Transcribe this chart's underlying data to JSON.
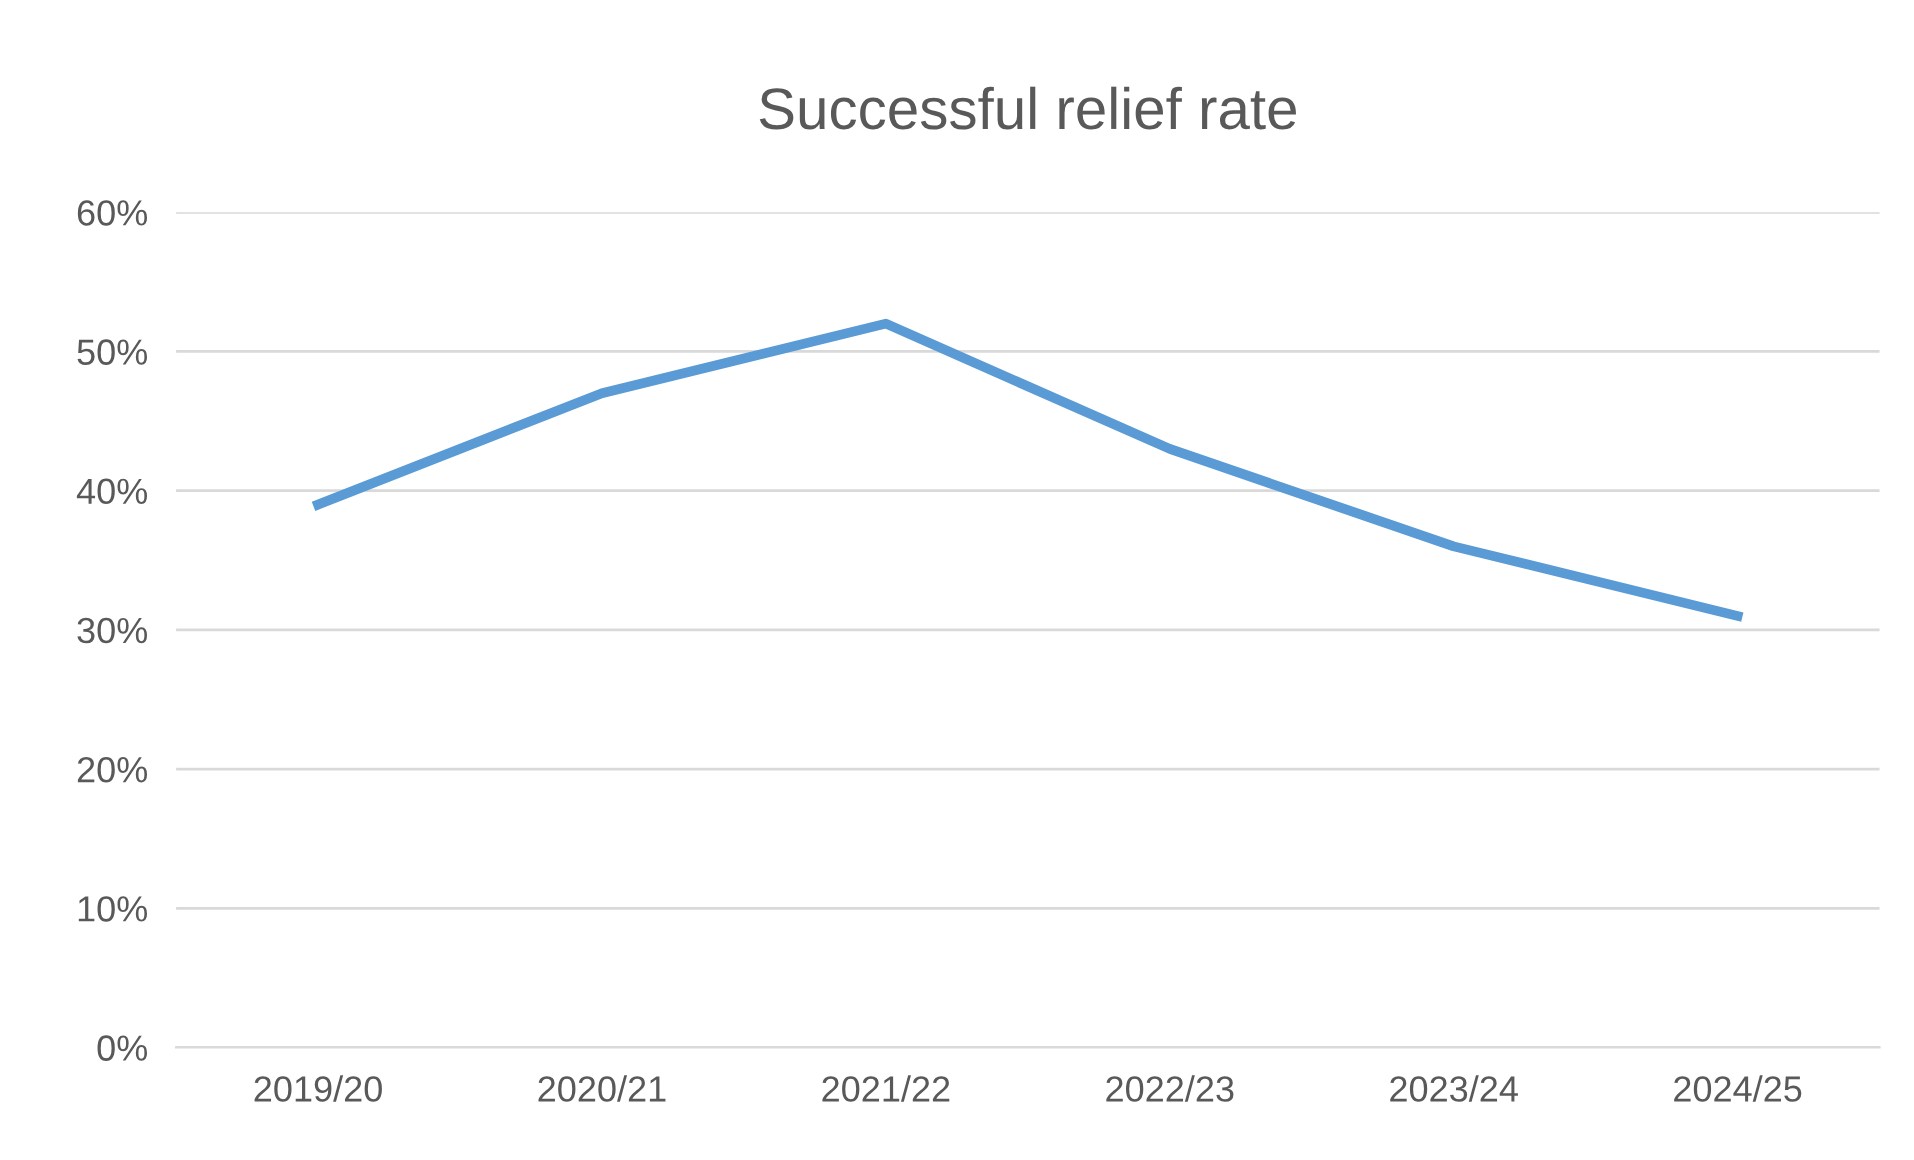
{
  "chart_data": {
    "type": "line",
    "title": "Successful relief rate",
    "categories": [
      "2019/20",
      "2020/21",
      "2021/22",
      "2022/23",
      "2023/24",
      "2024/25"
    ],
    "series": [
      {
        "color": "#5b9bd5",
        "values": [
          39,
          47,
          52,
          43,
          36,
          31
        ]
      }
    ],
    "ylim": [
      0,
      60
    ],
    "yticks": [
      {
        "value": 0,
        "label": "0%"
      },
      {
        "value": 10,
        "label": "10%"
      },
      {
        "value": 20,
        "label": "20%"
      },
      {
        "value": 30,
        "label": "30%"
      },
      {
        "value": 40,
        "label": "40%"
      },
      {
        "value": 50,
        "label": "50%"
      },
      {
        "value": 60,
        "label": "60%"
      }
    ],
    "grid": "y",
    "marker": "none",
    "line_style": "solid"
  }
}
